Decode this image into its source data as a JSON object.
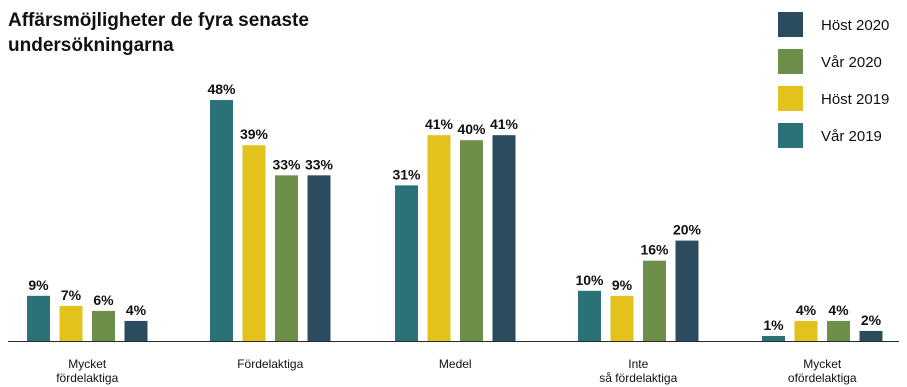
{
  "chart_data": {
    "type": "bar",
    "title_lines": [
      "Affärsmöjligheter de fyra senaste",
      "undersökningarna"
    ],
    "categories": [
      [
        "Mycket",
        "fördelaktiga"
      ],
      [
        "Fördelaktiga"
      ],
      [
        "Medel"
      ],
      [
        "Inte",
        "så fördelaktiga"
      ],
      [
        "Mycket",
        "ofördelaktiga"
      ]
    ],
    "series": [
      {
        "name": "Vår 2019",
        "color": "#2a7178",
        "values": [
          9,
          48,
          31,
          10,
          1
        ]
      },
      {
        "name": "Höst 2019",
        "color": "#e3c21b",
        "values": [
          7,
          39,
          41,
          9,
          4
        ]
      },
      {
        "name": "Vår 2020",
        "color": "#6e8f4a",
        "values": [
          6,
          33,
          40,
          16,
          4
        ]
      },
      {
        "name": "Höst 2020",
        "color": "#2b4b5e",
        "values": [
          4,
          33,
          41,
          20,
          2
        ]
      }
    ],
    "legend_order": [
      "Höst 2020",
      "Vår 2020",
      "Höst 2019",
      "Vår 2019"
    ],
    "value_suffix": "%",
    "legend_position": "top-right",
    "grid": false
  }
}
